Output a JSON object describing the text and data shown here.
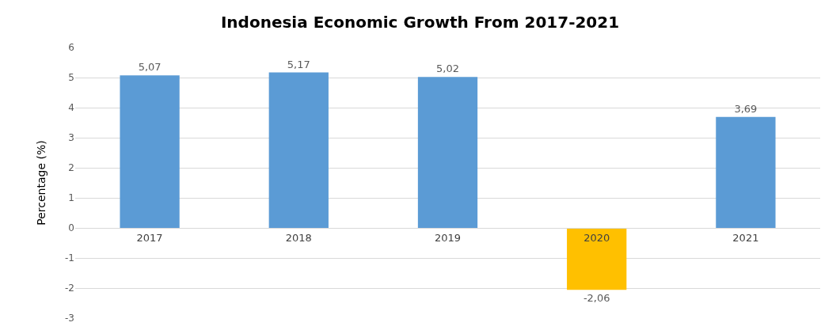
{
  "chart_data": {
    "type": "bar",
    "title": "Indonesia Economic Growth From 2017-2021",
    "ylabel": "Percentage (%)",
    "categories": [
      "2017",
      "2018",
      "2019",
      "2020",
      "2021"
    ],
    "values": [
      5.07,
      5.17,
      5.02,
      -2.06,
      3.69
    ],
    "colors": [
      "#5b9bd5",
      "#5b9bd5",
      "#5b9bd5",
      "#ffc000",
      "#5b9bd5"
    ],
    "value_labels": [
      "5,07",
      "5,17",
      "5,02",
      "-2,06",
      "3,69"
    ],
    "ylim": [
      -3,
      6
    ],
    "yticks": [
      -3,
      -2,
      -1,
      0,
      1,
      2,
      3,
      4,
      5,
      6
    ],
    "grid": "y",
    "legend": false
  }
}
